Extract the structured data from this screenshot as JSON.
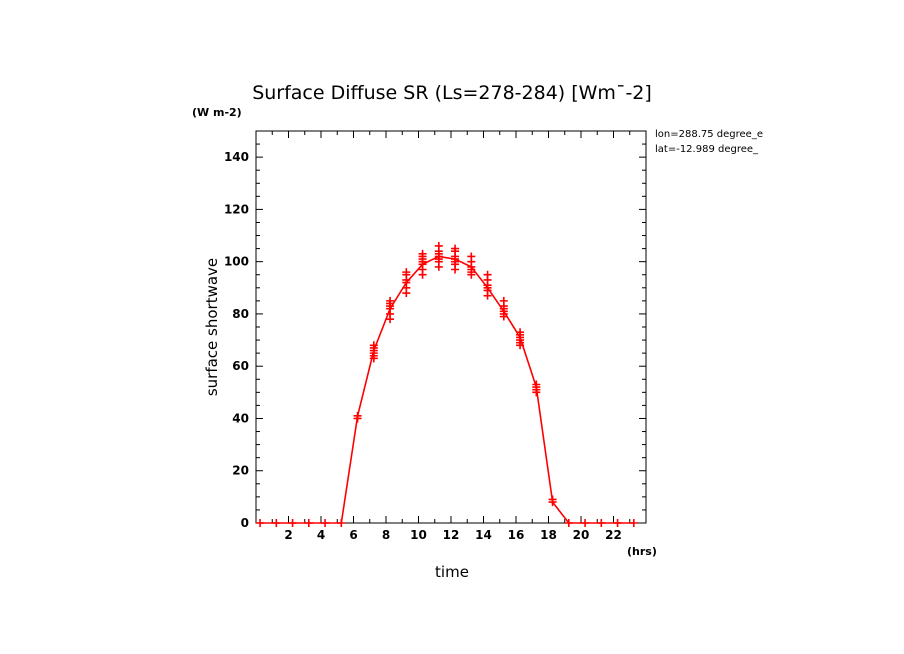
{
  "title": "Surface Diffuse SR (Ls=278-284) [Wm¯-2]",
  "ylabel": "surface shortwave",
  "yunit": "(W m-2)",
  "xlabel": "time",
  "xunit": "(hrs)",
  "info": [
    "lon=288.75 degree_e",
    "lat=-12.989 degree_"
  ],
  "colors": {
    "series": "#ff0000",
    "axis": "#000000"
  },
  "chart_data": {
    "type": "line",
    "title": "Surface Diffuse SR (Ls=278-284) [Wm¯-2]",
    "xlabel": "time",
    "ylabel": "surface shortwave",
    "xlim": [
      0,
      24
    ],
    "ylim": [
      0,
      150
    ],
    "xticks": [
      2,
      4,
      6,
      8,
      10,
      12,
      14,
      16,
      18,
      20,
      22
    ],
    "yticks": [
      0,
      20,
      40,
      60,
      80,
      100,
      120,
      140
    ],
    "grid": false,
    "series": [
      {
        "x": [
          0.25,
          1.25,
          2.25,
          3.25,
          4.25,
          5.25,
          6.25,
          7.25,
          8.25,
          9.25,
          10.25,
          11.25,
          12.25,
          13.25,
          14.25,
          15.25,
          16.25,
          17.25,
          18.25,
          19.25,
          20.25,
          21.25,
          22.25,
          23.25
        ],
        "values": [
          0,
          0,
          0,
          0,
          0,
          0,
          41,
          66,
          82,
          92,
          99,
          102,
          101,
          98,
          90,
          81,
          71,
          52,
          8,
          0,
          0,
          0,
          0,
          0
        ]
      }
    ],
    "scatter": [
      {
        "x": [
          0.25,
          1.25,
          2.25,
          3.25,
          4.25,
          5.25,
          6.25,
          6.25,
          7.25,
          7.25,
          7.25,
          7.25,
          7.25,
          7.25,
          8.25,
          8.25,
          8.25,
          8.25,
          8.25,
          8.25,
          9.25,
          9.25,
          9.25,
          9.25,
          9.25,
          9.25,
          10.25,
          10.25,
          10.25,
          10.25,
          10.25,
          10.25,
          10.25,
          11.25,
          11.25,
          11.25,
          11.25,
          11.25,
          11.25,
          11.25,
          12.25,
          12.25,
          12.25,
          12.25,
          12.25,
          12.25,
          12.25,
          13.25,
          13.25,
          13.25,
          13.25,
          13.25,
          13.25,
          14.25,
          14.25,
          14.25,
          14.25,
          14.25,
          14.25,
          15.25,
          15.25,
          15.25,
          15.25,
          15.25,
          15.25,
          16.25,
          16.25,
          16.25,
          16.25,
          16.25,
          16.25,
          17.25,
          17.25,
          17.25,
          17.25,
          18.25,
          18.25,
          19.25,
          20.25,
          21.25,
          22.25,
          23.25
        ],
        "y": [
          0,
          0,
          0,
          0,
          0,
          0,
          40,
          41,
          63,
          64,
          65,
          66,
          67,
          68,
          78,
          80,
          82,
          83,
          84,
          85,
          88,
          90,
          92,
          93,
          95,
          96,
          95,
          97,
          99,
          100,
          101,
          102,
          103,
          98,
          100,
          101,
          102,
          103,
          104,
          106,
          97,
          99,
          100,
          101,
          102,
          104,
          105,
          95,
          96,
          97,
          98,
          100,
          102,
          87,
          89,
          90,
          91,
          93,
          95,
          79,
          80,
          81,
          82,
          83,
          85,
          68,
          69,
          70,
          71,
          72,
          73,
          50,
          51,
          52,
          53,
          8,
          9,
          0,
          0,
          0,
          0,
          0
        ]
      }
    ]
  }
}
